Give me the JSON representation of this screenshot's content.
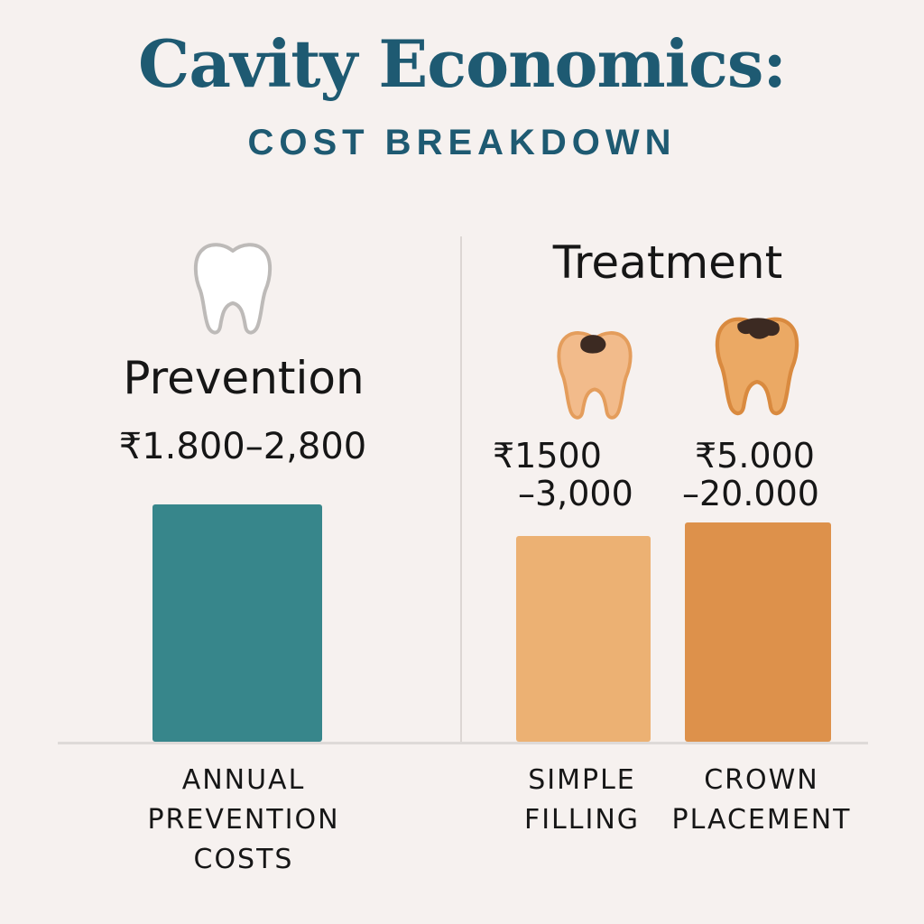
{
  "header": {
    "title": "Cavity Economics:",
    "subtitle": "COST BREAKDOWN"
  },
  "sections": {
    "prevention": {
      "heading": "Prevention",
      "range": "₹1.800–2,800",
      "icon": "healthy-tooth-icon"
    },
    "treatment": {
      "heading": "Treatment",
      "filling_icon": "decayed-tooth-icon",
      "crown_icon": "decayed-tooth-icon"
    }
  },
  "colors": {
    "prevention": "#37868b",
    "filling": "#ecb173",
    "crown": "#dd914b",
    "title": "#1e5a72"
  },
  "chart_data": {
    "type": "bar",
    "categories": [
      "ANNUAL PREVENTION COSTS",
      "SIMPLE FILLING",
      "CROWN PLACEMENT"
    ],
    "category_lines": [
      [
        "ANNUAL",
        "PREVENTION",
        "COSTS"
      ],
      [
        "SIMPLE",
        "FILLING"
      ],
      [
        "CROWN",
        "PLACEMENT"
      ]
    ],
    "value_labels": [
      [
        "₹1.800–2,800"
      ],
      [
        "₹1500",
        "–3,000"
      ],
      [
        "₹5.000",
        "–20.000"
      ]
    ],
    "values": [
      2800,
      3000,
      20000
    ],
    "title": "Cavity Economics:",
    "subtitle": "COST BREAKDOWN",
    "xlabel": "",
    "ylabel": "",
    "grid": false,
    "legend": "none"
  }
}
